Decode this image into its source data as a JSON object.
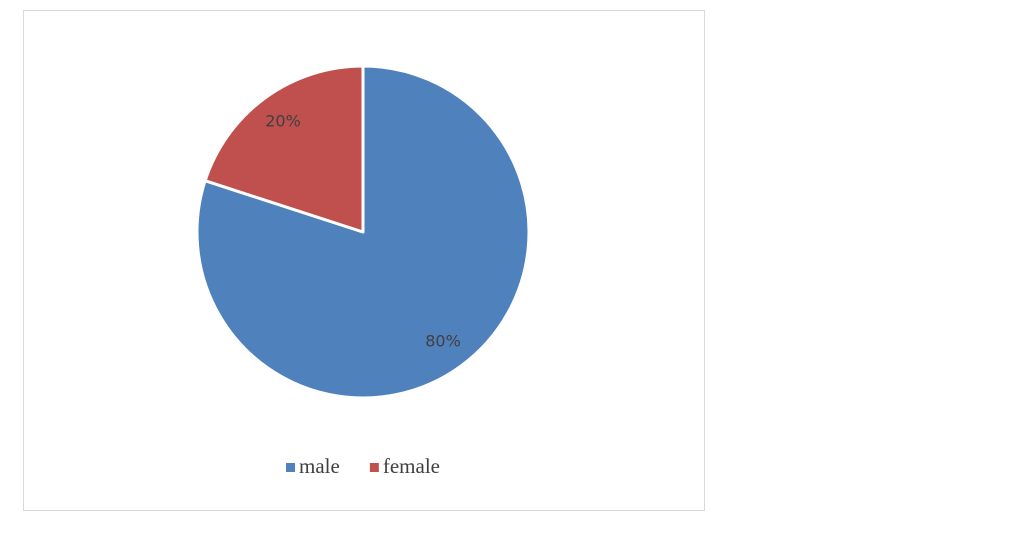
{
  "chart_data": {
    "type": "pie",
    "categories": [
      "male",
      "female"
    ],
    "values": [
      80,
      20
    ],
    "value_labels": [
      "80%",
      "20%"
    ],
    "colors": [
      "#4f81bd",
      "#c0504d"
    ],
    "legend": "bottom"
  }
}
